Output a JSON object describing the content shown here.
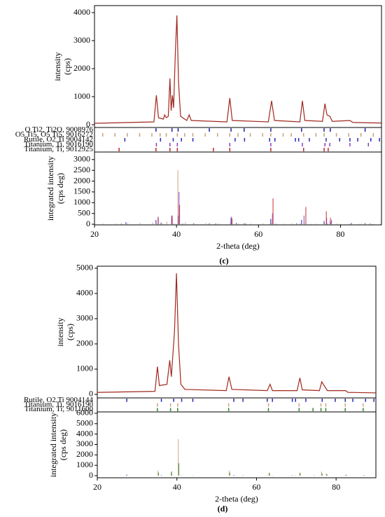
{
  "chart_data": [
    {
      "type": "line",
      "caption": "(c)",
      "xlabel": "2-theta (deg)",
      "ylabel": [
        "intensity",
        "(cps)"
      ],
      "y2label": [
        "integrated intensity",
        "(cps deg)"
      ],
      "color": "#a0281e",
      "x": [
        20,
        34.5,
        35.1,
        35.6,
        36.8,
        37.1,
        37.5,
        38.0,
        38.4,
        38.7,
        39.0,
        39.3,
        39.7,
        40.1,
        40.5,
        41.0,
        42.5,
        43.1,
        43.6,
        52.3,
        53.0,
        53.6,
        62.4,
        63.2,
        63.9,
        70.1,
        70.7,
        71.3,
        75.6,
        76.2,
        76.7,
        77.4,
        78.0,
        82.3,
        83,
        90
      ],
      "values": [
        50,
        100,
        1050,
        250,
        200,
        350,
        250,
        300,
        1650,
        500,
        1050,
        600,
        2500,
        3900,
        1500,
        300,
        150,
        350,
        150,
        100,
        950,
        150,
        100,
        850,
        150,
        100,
        850,
        150,
        120,
        750,
        350,
        300,
        120,
        150,
        80,
        60
      ],
      "xlim": [
        20,
        90
      ],
      "xticks": [
        20,
        40,
        60,
        80
      ],
      "ylim": [
        -100,
        4250
      ],
      "yticks": [
        0,
        1000,
        2000,
        3000,
        4000
      ],
      "y2lim": [
        -30,
        3350
      ],
      "y2ticks": [
        0,
        500,
        1000,
        1500,
        2000,
        2500,
        3000
      ],
      "phases": [
        {
          "name": "O Ti2, Ti2O, 9008976",
          "color": "#1f1fa8",
          "positions": [
            35.0,
            38.9,
            40.4,
            48.0,
            53.3,
            56.5,
            63.0,
            70.5,
            76.0,
            77.5,
            86.0
          ],
          "intensities": [
            200,
            250,
            400,
            40,
            300,
            40,
            250,
            200,
            150,
            120,
            50
          ]
        },
        {
          "name": "O5 Ti5, O5 Ti5, 9016272",
          "color": "#c8a07a",
          "positions": [
            22,
            25,
            28,
            31,
            34,
            36,
            37.5,
            40.2,
            42,
            44,
            47,
            50,
            53,
            55,
            58,
            61,
            63,
            66,
            68,
            71,
            74,
            76,
            79,
            82,
            85,
            88
          ],
          "intensities": [
            30,
            40,
            50,
            60,
            80,
            100,
            120,
            2500,
            80,
            60,
            50,
            40,
            60,
            40,
            30,
            40,
            60,
            30,
            40,
            50,
            30,
            60,
            30,
            30,
            30,
            20
          ]
        },
        {
          "name": "Rutile, O2 Ti 9004142",
          "color": "#2828b4",
          "positions": [
            27.4,
            36.1,
            39.2,
            41.2,
            44.0,
            54.3,
            56.6,
            62.7,
            64.0,
            69.0,
            69.8,
            72.4,
            76.5,
            79.8,
            82.3,
            84.2,
            87.4,
            89.5
          ],
          "intensities": [
            100,
            50,
            20,
            30,
            20,
            60,
            30,
            20,
            20,
            40,
            20,
            10,
            20,
            10,
            20,
            10,
            10,
            10
          ]
        },
        {
          "name": "Titanium, Ti, 9016190",
          "color": "#8a3cc8",
          "positions": [
            35.1,
            38.4,
            40.2,
            53.0,
            63.0,
            70.7,
            76.2,
            77.4,
            82.3,
            86.8
          ],
          "intensities": [
            350,
            400,
            1500,
            350,
            500,
            400,
            300,
            200,
            60,
            40
          ]
        },
        {
          "name": "Titanium, Ti, 9012925",
          "color": "#c0282a",
          "positions": [
            26.0,
            35.0,
            38.4,
            40.2,
            49.0,
            53.0,
            63.0,
            71.0,
            76.0,
            77.0
          ],
          "intensities": [
            30,
            300,
            400,
            900,
            40,
            250,
            1200,
            800,
            600,
            300
          ]
        }
      ]
    },
    {
      "type": "line",
      "caption": "(d)",
      "xlabel": "2-theta (deg)",
      "ylabel": [
        "intensity",
        "(cps)"
      ],
      "y2label": [
        "integrated intensity",
        "(cps deg)"
      ],
      "color": "#a0281e",
      "x": [
        20,
        34.5,
        35.1,
        35.6,
        37.5,
        38.2,
        38.6,
        39.4,
        39.9,
        40.4,
        41.0,
        42.0,
        52.4,
        53.1,
        53.8,
        62.7,
        63.4,
        64.0,
        70.2,
        70.9,
        71.5,
        75.8,
        76.4,
        77.0,
        77.8,
        82.4,
        83,
        90
      ],
      "values": [
        80,
        120,
        1100,
        350,
        400,
        1350,
        700,
        2500,
        4800,
        2000,
        400,
        200,
        150,
        700,
        200,
        150,
        400,
        150,
        150,
        650,
        180,
        150,
        500,
        350,
        150,
        150,
        80,
        60
      ],
      "xlim": [
        20,
        90
      ],
      "xticks": [
        20,
        40,
        60,
        80
      ],
      "ylim": [
        -140,
        5080
      ],
      "yticks": [
        0,
        1000,
        2000,
        3000,
        4000,
        5000
      ],
      "y2lim": [
        -200,
        6130
      ],
      "y2ticks": [
        0,
        1000,
        2000,
        3000,
        4000,
        5000,
        6000
      ],
      "phases": [
        {
          "name": "Rutile, O2 Ti 9004144",
          "color": "#2828b4",
          "positions": [
            27.4,
            36.1,
            39.2,
            41.2,
            44.0,
            54.3,
            56.6,
            62.7,
            64.0,
            69.0,
            69.8,
            72.4,
            76.5,
            79.8,
            82.3,
            84.2,
            87.4,
            89.5
          ],
          "intensities": [
            100,
            50,
            20,
            30,
            20,
            60,
            30,
            20,
            20,
            40,
            20,
            10,
            20,
            10,
            20,
            10,
            10,
            10
          ]
        },
        {
          "name": "Titanium, Ti, 9016190",
          "color": "#d0a080",
          "positions": [
            35.1,
            38.4,
            40.2,
            53.0,
            63.0,
            70.7,
            76.2,
            77.4,
            82.3,
            86.8
          ],
          "intensities": [
            500,
            300,
            3500,
            500,
            300,
            300,
            400,
            200,
            100,
            50
          ]
        },
        {
          "name": "Titanium, Ti, 9011600",
          "color": "#2a8a2a",
          "positions": [
            35.1,
            38.4,
            40.2,
            53.0,
            63.0,
            70.7,
            74.2,
            76.2,
            77.4,
            82.3,
            86.8
          ],
          "intensities": [
            300,
            400,
            1200,
            300,
            250,
            250,
            40,
            200,
            150,
            60,
            40
          ]
        }
      ]
    }
  ]
}
